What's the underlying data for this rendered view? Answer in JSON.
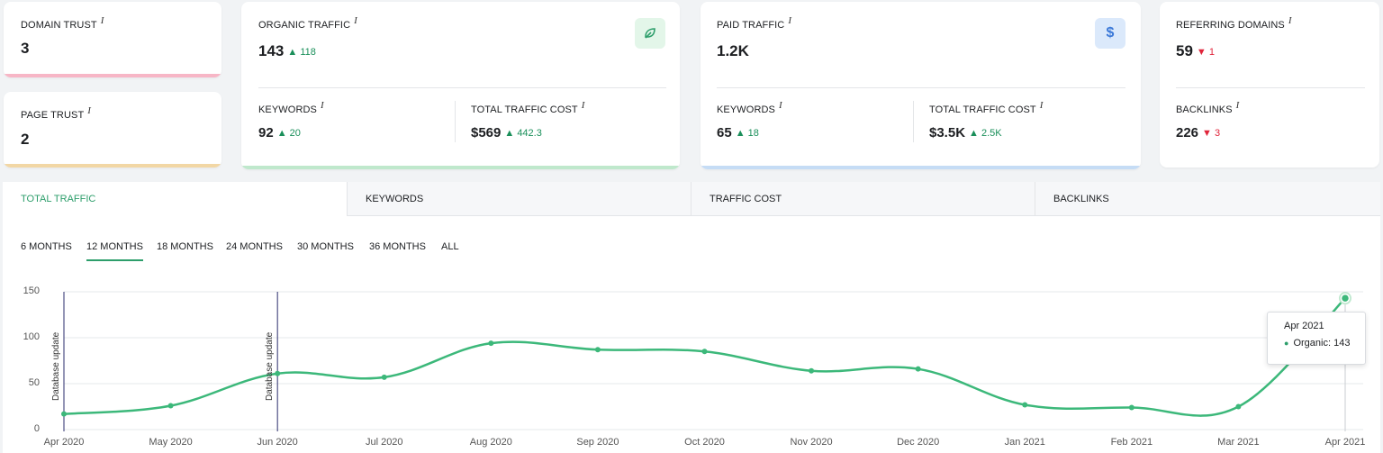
{
  "cards": {
    "domain_trust": {
      "label": "DOMAIN TRUST",
      "info": "i",
      "value": "3",
      "bar_color": "#f7b6c6"
    },
    "page_trust": {
      "label": "PAGE TRUST",
      "info": "i",
      "value": "2",
      "bar_color": "#f2d7a5"
    },
    "organic": {
      "label": "ORGANIC TRAFFIC",
      "info": "i",
      "value": "143",
      "delta": "▲ 118",
      "icon": "leaf-icon",
      "icon_bg": "#e3f6e9",
      "bar_color": "#bfe8cc",
      "keywords_label": "KEYWORDS",
      "keywords_value": "92",
      "keywords_delta": "▲ 20",
      "cost_label": "TOTAL TRAFFIC COST",
      "cost_value": "$569",
      "cost_delta": "▲ 442.3"
    },
    "paid": {
      "label": "PAID TRAFFIC",
      "info": "i",
      "value": "1.2K",
      "icon": "dollar-icon",
      "icon_symbol": "$",
      "icon_bg": "#dbe9fb",
      "bar_color": "#c5dcf5",
      "keywords_label": "KEYWORDS",
      "keywords_value": "65",
      "keywords_delta": "▲ 18",
      "cost_label": "TOTAL TRAFFIC COST",
      "cost_value": "$3.5K",
      "cost_delta": "▲ 2.5K"
    },
    "referring": {
      "label": "REFERRING DOMAINS",
      "info": "i",
      "value": "59",
      "delta": "▼ 1",
      "backlinks_label": "BACKLINKS",
      "backlinks_value": "226",
      "backlinks_delta": "▼ 3"
    }
  },
  "tabs": [
    {
      "label": "TOTAL TRAFFIC",
      "active": true
    },
    {
      "label": "KEYWORDS",
      "active": false
    },
    {
      "label": "TRAFFIC COST",
      "active": false
    },
    {
      "label": "BACKLINKS",
      "active": false
    }
  ],
  "periods": [
    {
      "label": "6 MONTHS",
      "active": false
    },
    {
      "label": "12 MONTHS",
      "active": true
    },
    {
      "label": "18 MONTHS",
      "active": false
    },
    {
      "label": "24 MONTHS",
      "active": false
    },
    {
      "label": "30 MONTHS",
      "active": false
    },
    {
      "label": "36 MONTHS",
      "active": false
    },
    {
      "label": "ALL",
      "active": false
    }
  ],
  "chart_data": {
    "type": "line",
    "x": [
      "Apr 2020",
      "May 2020",
      "Jun 2020",
      "Jul 2020",
      "Aug 2020",
      "Sep 2020",
      "Oct 2020",
      "Nov 2020",
      "Dec 2020",
      "Jan 2021",
      "Feb 2021",
      "Mar 2021",
      "Apr 2021"
    ],
    "series": [
      {
        "name": "Organic",
        "values": [
          17,
          26,
          61,
          57,
          94,
          87,
          85,
          64,
          66,
          27,
          24,
          25,
          143
        ],
        "color": "#3cb87a"
      }
    ],
    "ylim": [
      0,
      150
    ],
    "yticks": [
      0,
      50,
      100,
      150
    ],
    "grid": true,
    "annotations": [
      {
        "x": "Apr 2020",
        "text": "Database update"
      },
      {
        "x": "Jun 2020",
        "text": "Database update"
      }
    ],
    "tooltip": {
      "title": "Apr 2021",
      "series": "Organic",
      "value": "143"
    }
  }
}
